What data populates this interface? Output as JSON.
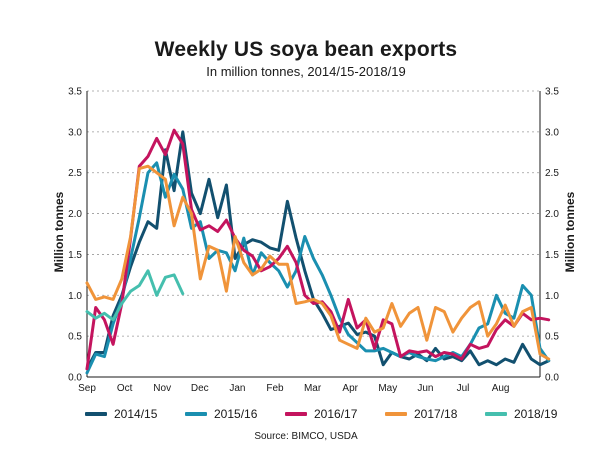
{
  "title": "Weekly US soya bean exports",
  "subtitle": "In million tonnes, 2014/15-2018/19",
  "source": "Source: BIMCO, USDA",
  "chart_data": {
    "type": "line",
    "ylabel_left": "Million tonnes",
    "ylabel_right": "Million tonnes",
    "ylim": [
      0,
      3.5
    ],
    "yticks": [
      "0.0",
      "0.5",
      "1.0",
      "1.5",
      "2.0",
      "2.5",
      "3.0",
      "3.5"
    ],
    "xticks": [
      "Sep",
      "Oct",
      "Nov",
      "Dec",
      "Jan",
      "Feb",
      "Mar",
      "Apr",
      "May",
      "Jun",
      "Jul",
      "Aug"
    ],
    "week_of_season_range": [
      0,
      52
    ],
    "grid": true,
    "legend_position": "bottom",
    "series": [
      {
        "name": "2014/15",
        "color": "#12506f",
        "values": [
          0.1,
          0.3,
          0.3,
          0.75,
          1.0,
          1.35,
          1.65,
          1.9,
          1.82,
          2.78,
          2.28,
          3.0,
          2.25,
          2.0,
          2.42,
          1.95,
          2.35,
          1.45,
          1.62,
          1.68,
          1.65,
          1.58,
          1.55,
          2.15,
          1.7,
          1.3,
          0.95,
          0.78,
          0.58,
          0.62,
          0.66,
          0.52,
          0.55,
          0.5,
          0.15,
          0.3,
          0.25,
          0.22,
          0.28,
          0.2,
          0.35,
          0.22,
          0.25,
          0.2,
          0.32,
          0.15,
          0.2,
          0.15,
          0.22,
          0.18,
          0.4,
          0.22,
          0.15,
          0.2
        ]
      },
      {
        "name": "2015/16",
        "color": "#1a8fb0",
        "values": [
          0.05,
          0.28,
          0.25,
          0.65,
          0.95,
          1.45,
          1.95,
          2.5,
          2.62,
          2.2,
          2.48,
          2.3,
          1.82,
          1.9,
          1.45,
          1.55,
          1.52,
          1.3,
          1.7,
          1.25,
          1.52,
          1.4,
          1.3,
          1.1,
          1.3,
          1.72,
          1.45,
          1.25,
          1.0,
          0.72,
          0.52,
          0.42,
          0.32,
          0.32,
          0.35,
          0.3,
          0.25,
          0.3,
          0.25,
          0.22,
          0.2,
          0.25,
          0.3,
          0.25,
          0.4,
          0.6,
          0.65,
          1.0,
          0.78,
          0.72,
          1.12,
          1.0,
          0.35,
          0.2
        ]
      },
      {
        "name": "2016/17",
        "color": "#c4145e",
        "values": [
          0.1,
          0.85,
          0.7,
          0.4,
          0.9,
          1.7,
          2.58,
          2.7,
          2.92,
          2.72,
          3.02,
          2.85,
          2.05,
          1.8,
          1.85,
          1.78,
          1.92,
          1.7,
          1.55,
          1.48,
          1.3,
          1.35,
          1.45,
          1.6,
          1.4,
          1.0,
          0.9,
          0.92,
          0.8,
          0.55,
          0.95,
          0.6,
          0.7,
          0.35,
          0.7,
          0.65,
          0.25,
          0.32,
          0.3,
          0.32,
          0.25,
          0.3,
          0.28,
          0.22,
          0.4,
          0.35,
          0.38,
          0.58,
          0.7,
          0.62,
          0.78,
          0.7,
          0.72,
          0.7
        ]
      },
      {
        "name": "2017/18",
        "color": "#f0943a",
        "values": [
          1.15,
          0.95,
          0.98,
          0.95,
          1.2,
          1.72,
          2.55,
          2.58,
          2.5,
          2.42,
          1.85,
          2.2,
          2.0,
          1.2,
          1.6,
          1.55,
          1.05,
          1.72,
          1.4,
          1.25,
          1.32,
          1.48,
          1.38,
          1.38,
          0.9,
          0.92,
          0.95,
          0.9,
          0.75,
          0.45,
          0.4,
          0.35,
          0.72,
          0.55,
          0.6,
          0.9,
          0.62,
          0.78,
          0.85,
          0.45,
          0.85,
          0.8,
          0.55,
          0.72,
          0.85,
          0.92,
          0.5,
          0.65,
          0.88,
          0.62,
          0.8,
          0.85,
          0.28,
          0.22
        ]
      },
      {
        "name": "2018/19",
        "color": "#45bfae",
        "values": [
          0.8,
          0.72,
          0.78,
          0.7,
          0.9,
          1.05,
          1.12,
          1.3,
          1.0,
          1.22,
          1.25,
          1.02
        ]
      }
    ]
  }
}
